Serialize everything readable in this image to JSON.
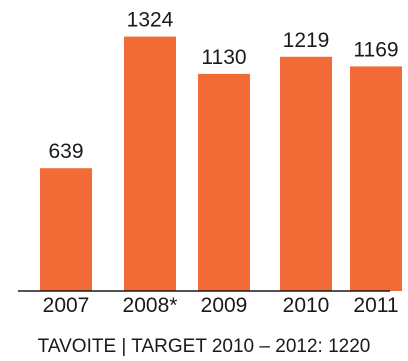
{
  "chart_data": {
    "type": "bar",
    "categories": [
      "2007",
      "2008*",
      "2009",
      "2010",
      "2011"
    ],
    "values": [
      639,
      1324,
      1130,
      1219,
      1169
    ],
    "data_labels": [
      "639",
      "1324",
      "1130",
      "1219",
      "1169"
    ],
    "caption": "TAVOITE | TARGET 2010 – 2012: 1220",
    "ylim": [
      0,
      1400
    ],
    "grid": false,
    "bar_color": "#F26A36"
  }
}
